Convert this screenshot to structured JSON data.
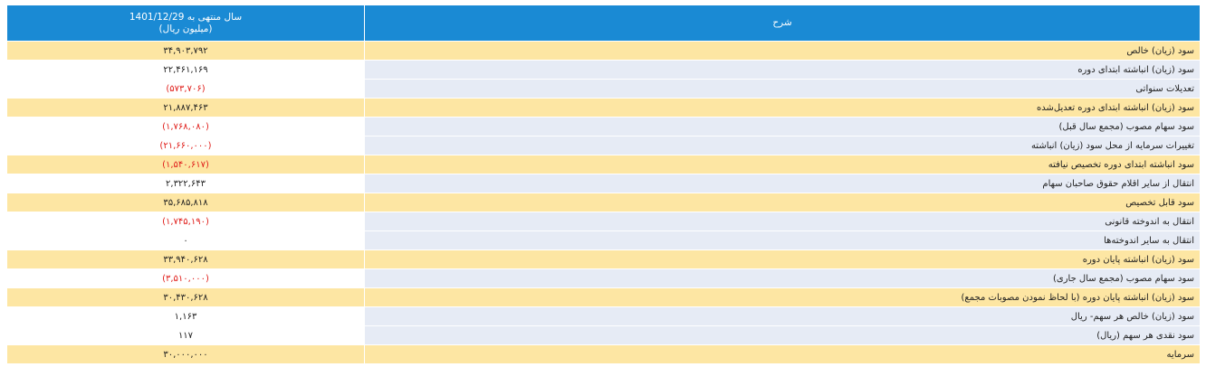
{
  "header": {
    "period": "سال منتهی به 1401/12/29",
    "unit": "(میلیون ریال)",
    "description": "شرح"
  },
  "table": {
    "rows": [
      {
        "label": "سود (زیان) خالص",
        "value": "۳۴,۹۰۳,۷۹۲",
        "highlight": true
      },
      {
        "label": "سود (زیان) انباشته ابتدای دوره",
        "value": "۲۲,۴۶۱,۱۶۹",
        "highlight": false
      },
      {
        "label": "تعدیلات سنواتی",
        "value": "(۵۷۳,۷۰۶)",
        "highlight": false
      },
      {
        "label": "سود (زیان) انباشته ابتدای دوره تعدیل‌شده",
        "value": "۲۱,۸۸۷,۴۶۳",
        "highlight": true
      },
      {
        "label": "سود سهام مصوب (مجمع سال قبل)",
        "value": "(۱,۷۶۸,۰۸۰)",
        "highlight": false
      },
      {
        "label": "تغییرات سرمایه از محل سود (زیان) انباشته",
        "value": "(۲۱,۶۶۰,۰۰۰)",
        "highlight": false
      },
      {
        "label": "سود انباشته ابتدای دوره تخصیص نیافته",
        "value": "(۱,۵۴۰,۶۱۷)",
        "highlight": true
      },
      {
        "label": "انتقال از سایر اقلام حقوق صاحبان سهام",
        "value": "۲,۳۲۲,۶۴۳",
        "highlight": false
      },
      {
        "label": "سود قابل تخصیص",
        "value": "۳۵,۶۸۵,۸۱۸",
        "highlight": true
      },
      {
        "label": "انتقال به اندوخته قانونی",
        "value": "(۱,۷۴۵,۱۹۰)",
        "highlight": false
      },
      {
        "label": "انتقال به سایر اندوخته‌ها",
        "value": "۰",
        "highlight": false
      },
      {
        "label": "سود (زیان) انباشته پایان دوره",
        "value": "۳۳,۹۴۰,۶۲۸",
        "highlight": true
      },
      {
        "label": "سود سهام مصوب (مجمع سال جاری)",
        "value": "(۳,۵۱۰,۰۰۰)",
        "highlight": false
      },
      {
        "label": "سود (زیان) انباشته پایان دوره (با لحاظ نمودن مصوبات مجمع)",
        "value": "۳۰,۴۳۰,۶۲۸",
        "highlight": true
      },
      {
        "label": "سود (زیان) خالص هر سهم- ریال",
        "value": "۱,۱۶۳",
        "highlight": false
      },
      {
        "label": "سود نقدی هر سهم (ریال)",
        "value": "۱۱۷",
        "highlight": false
      },
      {
        "label": "سرمایه",
        "value": "۳۰,۰۰۰,۰۰۰",
        "highlight": true
      }
    ]
  }
}
